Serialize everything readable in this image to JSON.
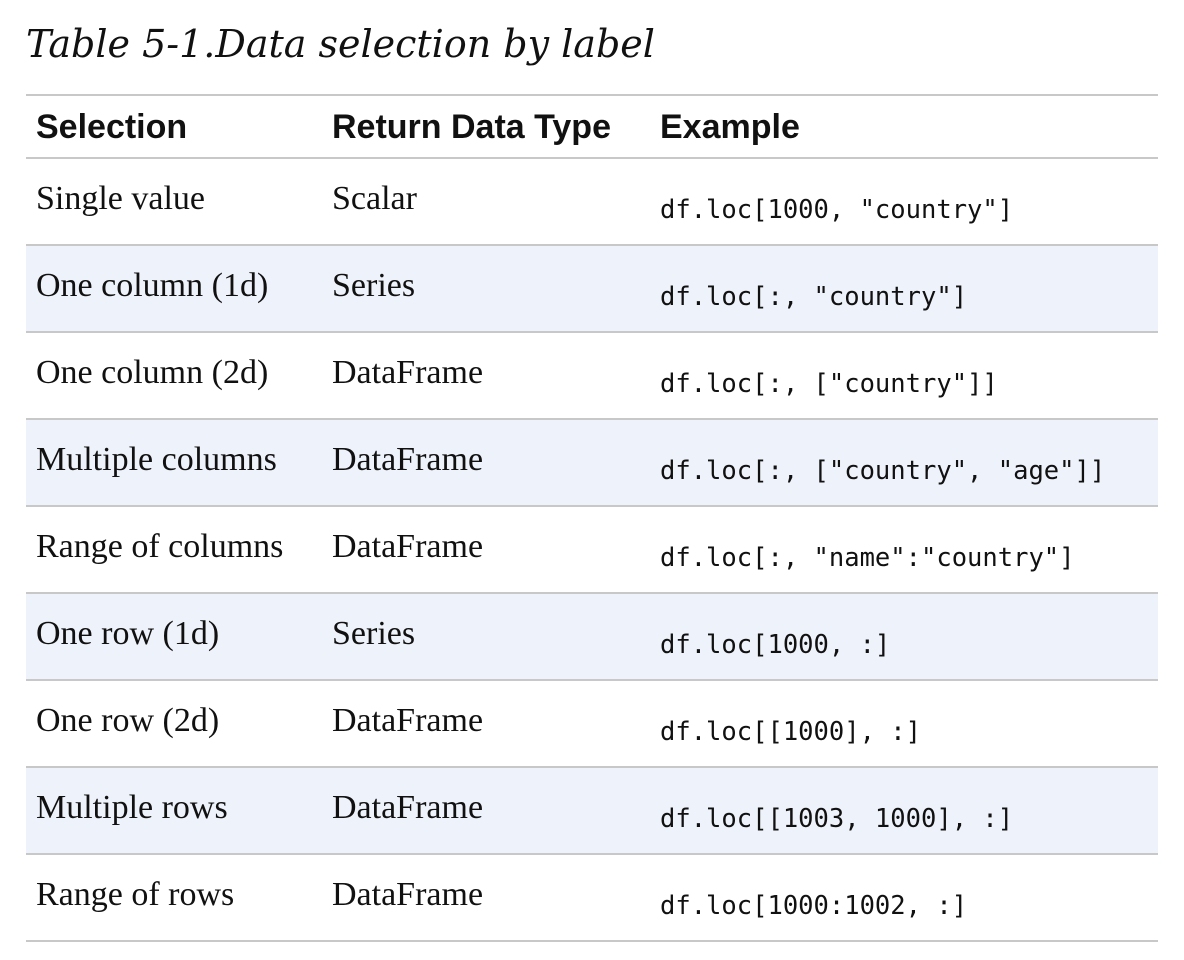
{
  "caption": {
    "label": "Table 5-1.",
    "title": "Data selection by label"
  },
  "table": {
    "headers": [
      "Selection",
      "Return Data Type",
      "Example"
    ],
    "rows": [
      {
        "selection": "Single value",
        "type": "Scalar",
        "example": "df.loc[1000, \"country\"]"
      },
      {
        "selection": "One column (1d)",
        "type": "Series",
        "example": "df.loc[:, \"country\"]"
      },
      {
        "selection": "One column (2d)",
        "type": "DataFrame",
        "example": "df.loc[:, [\"country\"]]"
      },
      {
        "selection": "Multiple columns",
        "type": "DataFrame",
        "example": "df.loc[:, [\"country\", \"age\"]]"
      },
      {
        "selection": "Range of columns",
        "type": "DataFrame",
        "example": "df.loc[:, \"name\":\"country\"]"
      },
      {
        "selection": "One row (1d)",
        "type": "Series",
        "example": "df.loc[1000, :]"
      },
      {
        "selection": "One row (2d)",
        "type": "DataFrame",
        "example": "df.loc[[1000], :]"
      },
      {
        "selection": "Multiple rows",
        "type": "DataFrame",
        "example": "df.loc[[1003, 1000], :]"
      },
      {
        "selection": "Range of rows",
        "type": "DataFrame",
        "example": "df.loc[1000:1002, :]"
      }
    ]
  },
  "colors": {
    "text": "#111111",
    "rule": "#c8c8c8",
    "row_shade": "#eef2fa"
  }
}
